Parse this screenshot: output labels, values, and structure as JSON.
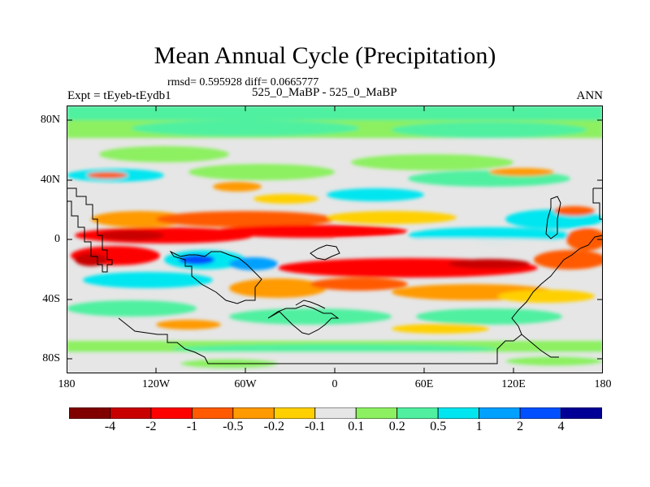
{
  "header": {
    "title": "Mean Annual Cycle (Precipitation)",
    "stats": "rmsd= 0.595928 diff= 0.0665777",
    "expt": "Expt = tEyeb-tEydb1",
    "case": "525_0_MaBP - 525_0_MaBP",
    "season": "ANN"
  },
  "chart_data": {
    "type": "heatmap",
    "title": "Mean Annual Cycle (Precipitation)",
    "subtitle": "rmsd= 0.595928 diff= 0.0665777",
    "xlabel": "",
    "ylabel": "",
    "x_ticks": [
      "180",
      "120W",
      "60W",
      "0",
      "60E",
      "120E",
      "180"
    ],
    "y_ticks": [
      "80N",
      "40N",
      "0",
      "40S",
      "80S"
    ],
    "xlim": [
      -180,
      180
    ],
    "ylim": [
      -90,
      90
    ],
    "colorbar": {
      "levels": [
        "-4",
        "-2",
        "-1",
        "-0.5",
        "-0.2",
        "-0.1",
        "0.1",
        "0.2",
        "0.5",
        "1",
        "2",
        "4"
      ],
      "colors": [
        "#800000",
        "#c80000",
        "#ff0000",
        "#ff5a00",
        "#ff9a00",
        "#ffd000",
        "#e6e6e6",
        "#8cf060",
        "#50f0a0",
        "#00e6f0",
        "#00a0ff",
        "#0050ff",
        "#000096"
      ]
    }
  }
}
